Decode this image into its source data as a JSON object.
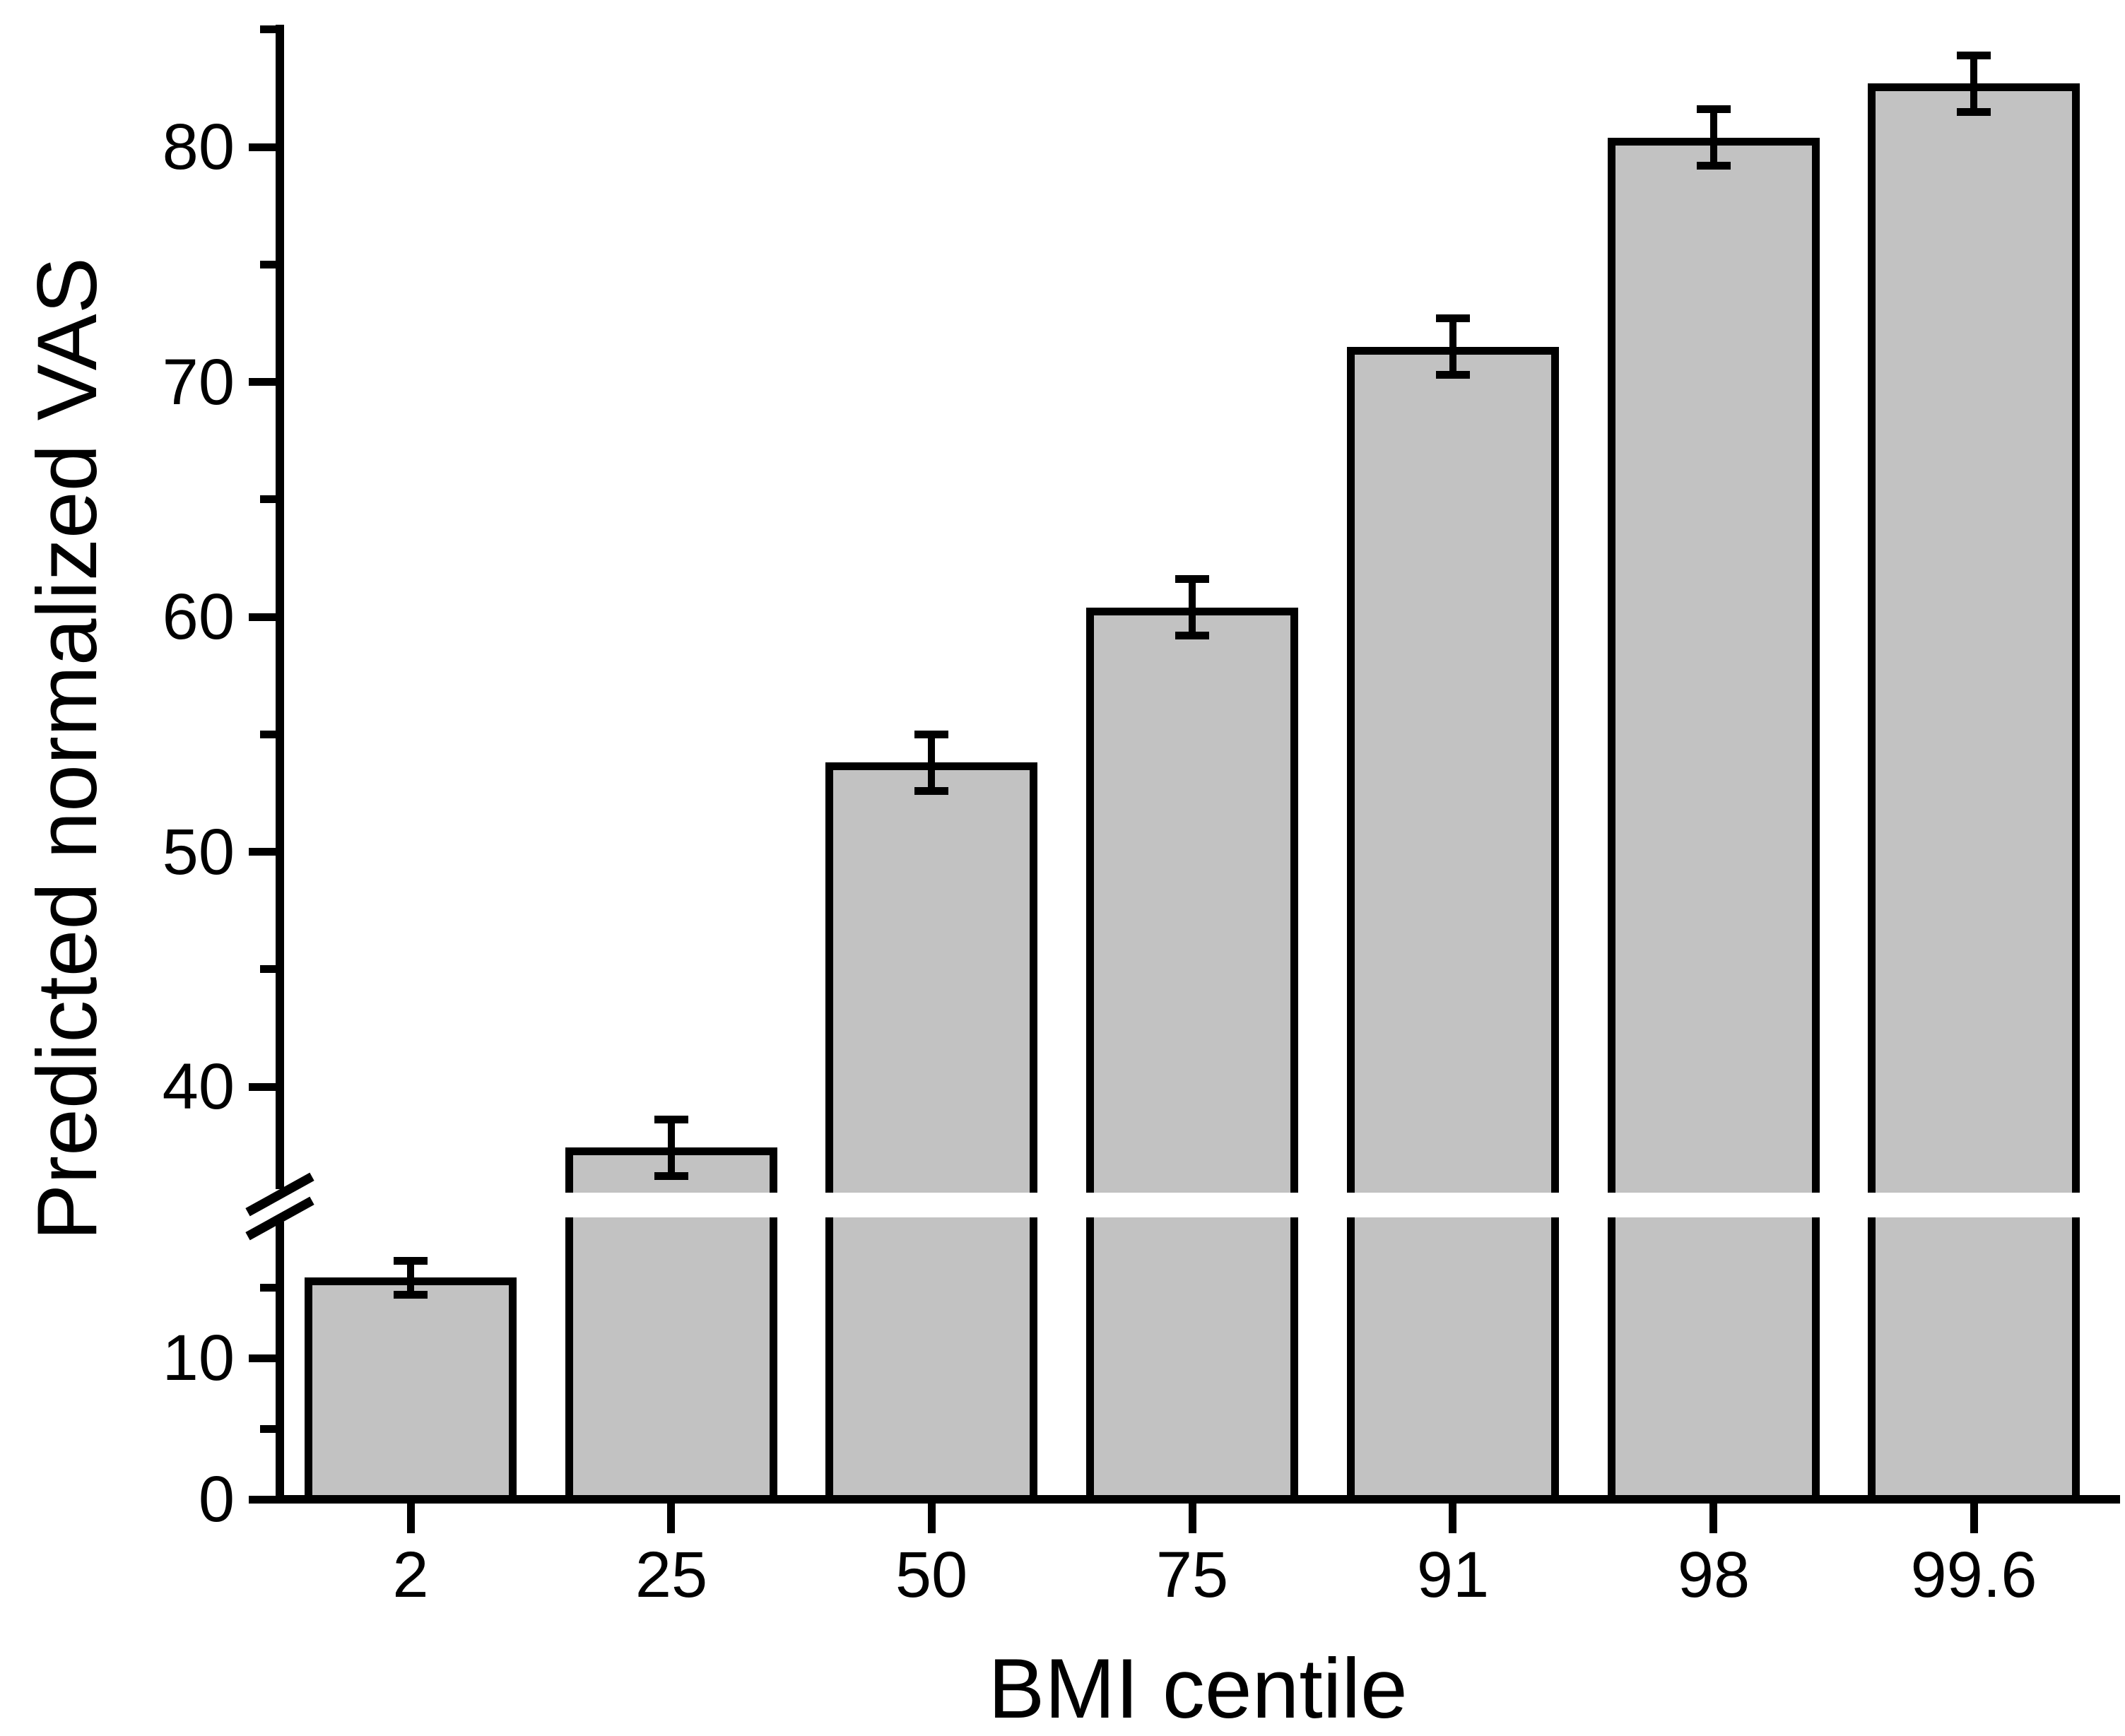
{
  "figure": {
    "background": "#ffffff",
    "bar_fill": "#c2c2c2",
    "line_color": "#000000"
  },
  "chart_data": {
    "type": "bar",
    "title": "",
    "xlabel": "BMI centile",
    "ylabel": "Predicted normalized VAS",
    "categories": [
      "2",
      "25",
      "50",
      "75",
      "91",
      "98",
      "99.6"
    ],
    "series": [
      {
        "name": "Predicted normalized VAS",
        "values": [
          15.7,
          37.4,
          53.8,
          60.4,
          71.5,
          80.4,
          82.7
        ],
        "errors": [
          1.2,
          1.2,
          1.2,
          1.2,
          1.2,
          1.2,
          1.2
        ]
      }
    ],
    "bar_color": "#c2c2c2",
    "bar_outline": "#000000",
    "error_bars": true,
    "grid": false,
    "legend": false,
    "axis_break": {
      "enabled": true,
      "lower_segment_range": [
        0,
        20
      ],
      "upper_segment_range": [
        35,
        85
      ]
    },
    "y_axis": {
      "major_tick_values": [
        0,
        10,
        40,
        50,
        60,
        70,
        80
      ],
      "major_tick_labels": [
        "0",
        "10",
        "40",
        "50",
        "60",
        "70",
        "80"
      ],
      "minor_tick_values": [
        5,
        15,
        45,
        55,
        65,
        75,
        85
      ]
    },
    "x_axis": {
      "tick_labels": [
        "2",
        "25",
        "50",
        "75",
        "91",
        "98",
        "99.6"
      ]
    }
  }
}
